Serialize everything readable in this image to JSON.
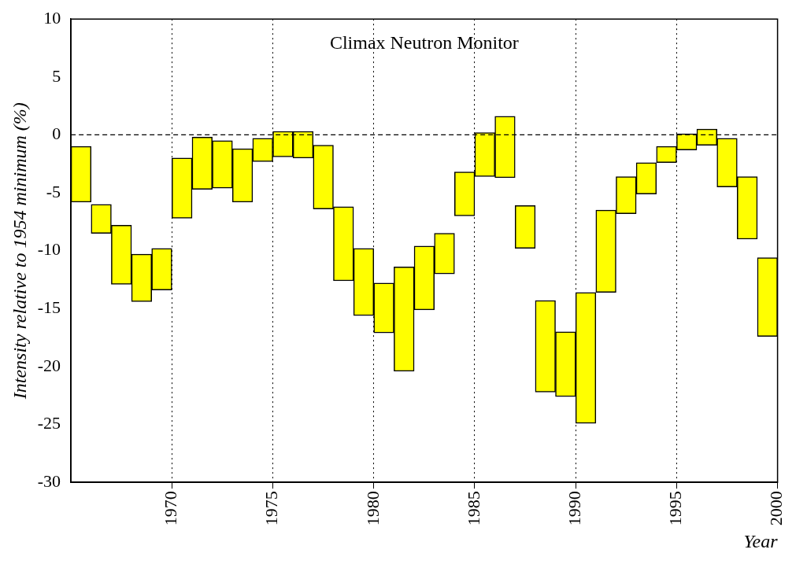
{
  "chart_data": {
    "type": "bar",
    "title": "Climax Neutron Monitor",
    "xlabel": "Year",
    "ylabel": "Intensity relative to 1954 minimum (%)",
    "x": [
      1965.5,
      1966.5,
      1967.5,
      1968.5,
      1969.5,
      1970.5,
      1971.5,
      1972.5,
      1973.5,
      1974.5,
      1975.5,
      1976.5,
      1977.5,
      1978.5,
      1979.5,
      1980.5,
      1981.5,
      1982.5,
      1983.5,
      1984.5,
      1985.5,
      1986.5,
      1987.5,
      1988.5,
      1989.5,
      1990.5,
      1991.5,
      1992.5,
      1993.5,
      1994.5,
      1995.5,
      1996.5,
      1997.5,
      1998.5,
      1999.5
    ],
    "base": [
      -5.8,
      -8.5,
      -12.9,
      -14.4,
      -13.4,
      -7.2,
      -4.7,
      -4.6,
      -5.8,
      -2.3,
      -1.9,
      -2.0,
      -6.4,
      -12.6,
      -15.6,
      -17.1,
      -20.4,
      -15.1,
      -12.0,
      -7.0,
      -3.6,
      -3.7,
      -9.8,
      -22.2,
      -22.6,
      -24.9,
      -13.6,
      -6.8,
      -5.1,
      -2.4,
      -1.3,
      -0.9,
      -4.5,
      -9.0,
      -17.4
    ],
    "values": [
      4.8,
      2.5,
      5.1,
      4.1,
      3.6,
      5.2,
      4.5,
      4.1,
      4.6,
      2.0,
      2.2,
      2.3,
      5.5,
      6.4,
      5.8,
      4.3,
      9.0,
      5.5,
      3.5,
      3.8,
      3.8,
      5.3,
      3.7,
      7.9,
      5.6,
      11.3,
      7.1,
      3.2,
      2.7,
      1.4,
      1.4,
      1.4,
      4.2,
      5.4,
      6.8
    ],
    "color": "#ffff00",
    "xlim": [
      1965,
      2000
    ],
    "xticks": [
      1970,
      1975,
      1980,
      1985,
      1990,
      1995,
      2000
    ],
    "ylim": [
      -30,
      10
    ],
    "yticks": [
      -30,
      -25,
      -20,
      -15,
      -10,
      -5,
      0,
      5,
      10
    ],
    "grid": "x",
    "legend": false,
    "ref_lines": [
      {
        "axis": "y",
        "value": 0,
        "line_style": "dashed",
        "color": "#000000"
      }
    ]
  }
}
